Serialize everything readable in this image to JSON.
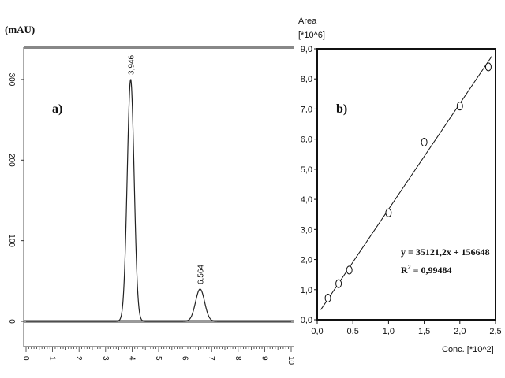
{
  "chart_data": [
    {
      "type": "line",
      "panel_label": "a)",
      "ylabel": "(mAU)",
      "xlim": [
        0,
        10
      ],
      "ylim": [
        0,
        340
      ],
      "x_ticks": [
        "0",
        "1",
        "2",
        "3",
        "4",
        "5",
        "6",
        "7",
        "8",
        "9",
        "10"
      ],
      "y_ticks": [
        "0",
        "100",
        "200",
        "300"
      ],
      "peaks": [
        {
          "label": "3,946",
          "x": 3.946,
          "height": 300,
          "width": 0.13
        },
        {
          "label": "6,564",
          "x": 6.564,
          "height": 40,
          "width": 0.17
        }
      ]
    },
    {
      "type": "scatter",
      "panel_label": "b)",
      "ylabel_line1": "Area",
      "ylabel_line2": "[*10^6]",
      "xlabel": "Conc. [*10^2]",
      "xlim": [
        0,
        2.5
      ],
      "ylim": [
        0,
        9
      ],
      "x_ticks": [
        "0,0",
        "0,5",
        "1,0",
        "1,5",
        "2,0",
        "2,5"
      ],
      "y_ticks": [
        "0,0",
        "1,0",
        "2,0",
        "3,0",
        "4,0",
        "5,0",
        "6,0",
        "7,0",
        "8,0",
        "9,0"
      ],
      "points": [
        {
          "x": 0.15,
          "y": 0.72
        },
        {
          "x": 0.3,
          "y": 1.2
        },
        {
          "x": 0.45,
          "y": 1.65
        },
        {
          "x": 1.0,
          "y": 3.55
        },
        {
          "x": 1.5,
          "y": 5.9
        },
        {
          "x": 2.0,
          "y": 7.1
        },
        {
          "x": 2.4,
          "y": 8.4
        }
      ],
      "fit": {
        "slope": 3.51212,
        "intercept": 0.156648
      },
      "equation": "y = 35121,2x + 156648",
      "r2_label": "R",
      "r2_sup": "2",
      "r2_value": " = 0,99484"
    }
  ]
}
